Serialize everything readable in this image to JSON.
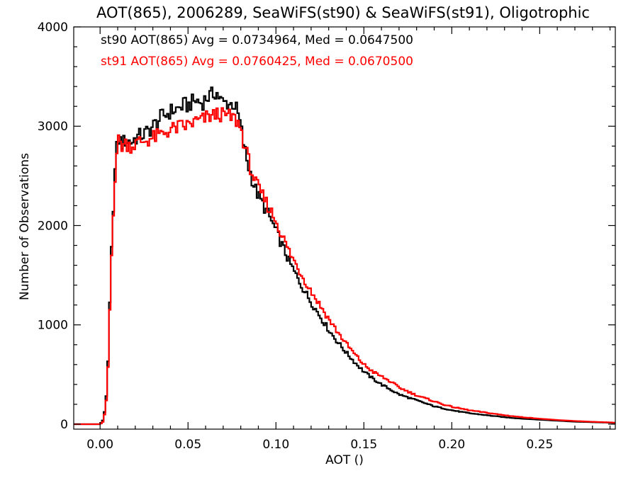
{
  "chart_data": {
    "type": "line",
    "title": "AOT(865), 2006289, SeaWiFS(st90) & SeaWiFS(st91), Oligotrophic",
    "xlabel": "AOT ()",
    "ylabel": "Number of Observations",
    "xlim": [
      -0.015,
      0.293
    ],
    "ylim": [
      -50,
      4000
    ],
    "xticks": [
      0.0,
      0.05,
      0.1,
      0.15,
      0.2,
      0.25
    ],
    "xtick_labels": [
      "0.00",
      "0.05",
      "0.10",
      "0.15",
      "0.20",
      "0.25"
    ],
    "yticks": [
      0,
      1000,
      2000,
      3000,
      4000
    ],
    "ytick_labels": [
      "0",
      "1000",
      "2000",
      "3000",
      "4000"
    ],
    "step_style": "histogram",
    "grid": false,
    "legend_position": "top-left",
    "series": [
      {
        "name": "st90 AOT(865) Avg = 0.0734964, Med = 0.0647500",
        "color": "#000000",
        "points": [
          [
            -0.015,
            0
          ],
          [
            0.0,
            0
          ],
          [
            0.002,
            50
          ],
          [
            0.004,
            350
          ],
          [
            0.005,
            900
          ],
          [
            0.006,
            1500
          ],
          [
            0.007,
            2000
          ],
          [
            0.008,
            2400
          ],
          [
            0.009,
            2700
          ],
          [
            0.01,
            2850
          ],
          [
            0.011,
            2880
          ],
          [
            0.012,
            2820
          ],
          [
            0.015,
            2860
          ],
          [
            0.018,
            2840
          ],
          [
            0.02,
            2880
          ],
          [
            0.022,
            2900
          ],
          [
            0.025,
            2920
          ],
          [
            0.028,
            2960
          ],
          [
            0.03,
            3000
          ],
          [
            0.033,
            3050
          ],
          [
            0.035,
            3100
          ],
          [
            0.038,
            3120
          ],
          [
            0.04,
            3150
          ],
          [
            0.043,
            3170
          ],
          [
            0.045,
            3180
          ],
          [
            0.048,
            3220
          ],
          [
            0.05,
            3200
          ],
          [
            0.052,
            3240
          ],
          [
            0.055,
            3260
          ],
          [
            0.058,
            3230
          ],
          [
            0.06,
            3280
          ],
          [
            0.062,
            3300
          ],
          [
            0.064,
            3320
          ],
          [
            0.066,
            3350
          ],
          [
            0.068,
            3280
          ],
          [
            0.07,
            3230
          ],
          [
            0.072,
            3240
          ],
          [
            0.074,
            3220
          ],
          [
            0.076,
            3230
          ],
          [
            0.078,
            3150
          ],
          [
            0.08,
            3000
          ],
          [
            0.082,
            2780
          ],
          [
            0.084,
            2620
          ],
          [
            0.086,
            2500
          ],
          [
            0.088,
            2380
          ],
          [
            0.09,
            2300
          ],
          [
            0.093,
            2200
          ],
          [
            0.096,
            2100
          ],
          [
            0.1,
            1950
          ],
          [
            0.104,
            1780
          ],
          [
            0.108,
            1620
          ],
          [
            0.112,
            1480
          ],
          [
            0.116,
            1350
          ],
          [
            0.12,
            1230
          ],
          [
            0.125,
            1090
          ],
          [
            0.13,
            950
          ],
          [
            0.135,
            830
          ],
          [
            0.14,
            720
          ],
          [
            0.145,
            620
          ],
          [
            0.15,
            530
          ],
          [
            0.155,
            460
          ],
          [
            0.16,
            400
          ],
          [
            0.165,
            350
          ],
          [
            0.17,
            300
          ],
          [
            0.175,
            270
          ],
          [
            0.18,
            240
          ],
          [
            0.185,
            210
          ],
          [
            0.19,
            180
          ],
          [
            0.195,
            160
          ],
          [
            0.2,
            140
          ],
          [
            0.21,
            110
          ],
          [
            0.22,
            90
          ],
          [
            0.23,
            70
          ],
          [
            0.24,
            55
          ],
          [
            0.25,
            45
          ],
          [
            0.26,
            35
          ],
          [
            0.27,
            25
          ],
          [
            0.28,
            20
          ],
          [
            0.29,
            15
          ],
          [
            0.293,
            12
          ]
        ]
      },
      {
        "name": "st91 AOT(865) Avg = 0.0760425, Med = 0.0670500",
        "color": "#ff0000",
        "points": [
          [
            -0.015,
            0
          ],
          [
            0.0,
            0
          ],
          [
            0.002,
            30
          ],
          [
            0.004,
            300
          ],
          [
            0.005,
            850
          ],
          [
            0.006,
            1450
          ],
          [
            0.007,
            1950
          ],
          [
            0.008,
            2350
          ],
          [
            0.009,
            2650
          ],
          [
            0.01,
            2830
          ],
          [
            0.011,
            2870
          ],
          [
            0.012,
            2800
          ],
          [
            0.015,
            2830
          ],
          [
            0.018,
            2800
          ],
          [
            0.02,
            2820
          ],
          [
            0.022,
            2840
          ],
          [
            0.025,
            2850
          ],
          [
            0.028,
            2870
          ],
          [
            0.03,
            2880
          ],
          [
            0.033,
            2900
          ],
          [
            0.035,
            2920
          ],
          [
            0.038,
            2950
          ],
          [
            0.04,
            2960
          ],
          [
            0.043,
            2980
          ],
          [
            0.045,
            2990
          ],
          [
            0.048,
            3000
          ],
          [
            0.05,
            3010
          ],
          [
            0.052,
            3030
          ],
          [
            0.055,
            3050
          ],
          [
            0.058,
            3060
          ],
          [
            0.06,
            3080
          ],
          [
            0.062,
            3100
          ],
          [
            0.064,
            3100
          ],
          [
            0.066,
            3120
          ],
          [
            0.068,
            3130
          ],
          [
            0.07,
            3100
          ],
          [
            0.072,
            3110
          ],
          [
            0.074,
            3090
          ],
          [
            0.076,
            3080
          ],
          [
            0.078,
            3050
          ],
          [
            0.08,
            2980
          ],
          [
            0.082,
            2820
          ],
          [
            0.084,
            2680
          ],
          [
            0.086,
            2560
          ],
          [
            0.088,
            2450
          ],
          [
            0.09,
            2370
          ],
          [
            0.093,
            2280
          ],
          [
            0.096,
            2180
          ],
          [
            0.1,
            2050
          ],
          [
            0.104,
            1880
          ],
          [
            0.108,
            1720
          ],
          [
            0.112,
            1590
          ],
          [
            0.116,
            1460
          ],
          [
            0.12,
            1340
          ],
          [
            0.125,
            1200
          ],
          [
            0.13,
            1060
          ],
          [
            0.135,
            930
          ],
          [
            0.14,
            810
          ],
          [
            0.145,
            700
          ],
          [
            0.15,
            600
          ],
          [
            0.155,
            530
          ],
          [
            0.16,
            480
          ],
          [
            0.165,
            430
          ],
          [
            0.17,
            370
          ],
          [
            0.175,
            330
          ],
          [
            0.18,
            290
          ],
          [
            0.185,
            260
          ],
          [
            0.19,
            230
          ],
          [
            0.195,
            200
          ],
          [
            0.2,
            175
          ],
          [
            0.21,
            140
          ],
          [
            0.22,
            115
          ],
          [
            0.23,
            90
          ],
          [
            0.24,
            70
          ],
          [
            0.25,
            55
          ],
          [
            0.26,
            42
          ],
          [
            0.27,
            32
          ],
          [
            0.28,
            24
          ],
          [
            0.29,
            18
          ],
          [
            0.293,
            15
          ]
        ]
      }
    ]
  }
}
